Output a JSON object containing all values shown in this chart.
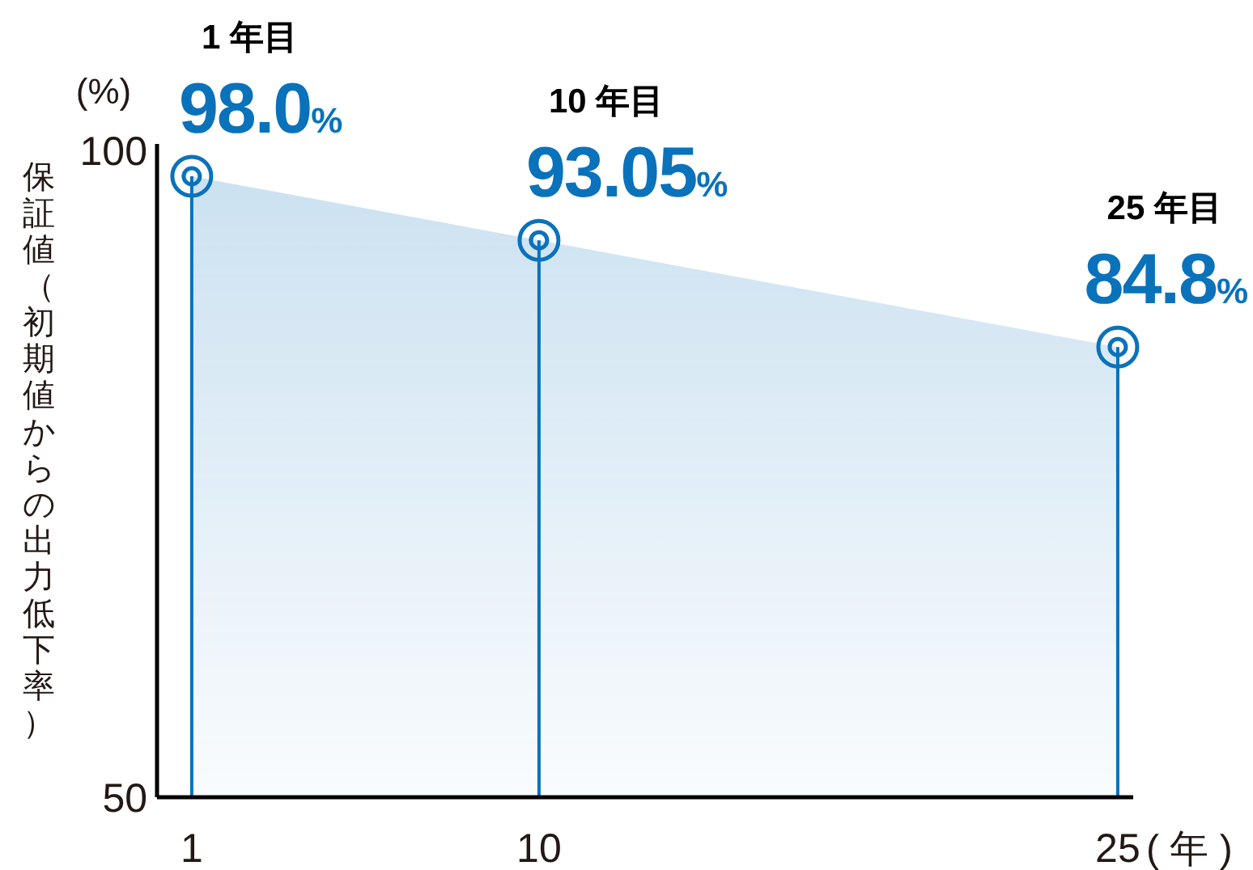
{
  "chart_data": {
    "type": "area",
    "x": [
      1,
      10,
      25
    ],
    "series": [
      {
        "color": "#0a72bb",
        "values": [
          98.0,
          93.05,
          84.8
        ],
        "value_labels": [
          "98.0%",
          "93.05%",
          "84.8%"
        ]
      }
    ],
    "xlim": [
      0.1,
      25.4
    ],
    "ylim": [
      50,
      100.5
    ],
    "xticks": [
      1,
      10,
      25
    ],
    "yticks": [
      50,
      100
    ],
    "xlabel": "( 年 )",
    "ylabel": "保証値（初期値からの出力低下率）",
    "annotations": [
      "(%)",
      "1 年目",
      "10 年目",
      "25 年目"
    ],
    "marker": "circle",
    "grid": "x"
  }
}
